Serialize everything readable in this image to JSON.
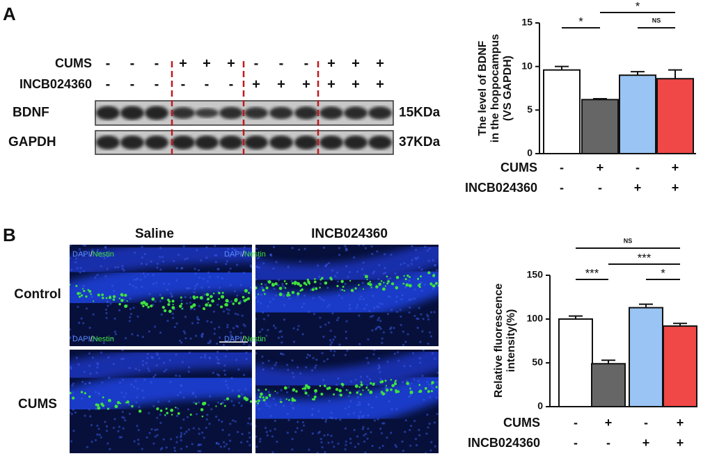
{
  "panel_labels": [
    "A",
    "B"
  ],
  "blot": {
    "treatments": [
      {
        "name": "CUMS",
        "signs": [
          "-",
          "-",
          "-",
          "+",
          "+",
          "+",
          "-",
          "-",
          "-",
          "+",
          "+",
          "+"
        ]
      },
      {
        "name": "INCB024360",
        "signs": [
          "-",
          "-",
          "-",
          "-",
          "-",
          "-",
          "+",
          "+",
          "+",
          "+",
          "+",
          "+"
        ]
      }
    ],
    "bands": [
      {
        "name": "BDNF",
        "size": "15KDa"
      },
      {
        "name": "GAPDH",
        "size": "37KDa"
      }
    ]
  },
  "microscopy": {
    "columns": [
      "Saline",
      "INCB024360"
    ],
    "rows": [
      "Control",
      "CUMS"
    ],
    "stain": {
      "dapi": "DAPI",
      "separator": "/",
      "nestin": "Nestin"
    }
  },
  "chart_data": [
    {
      "type": "bar",
      "y_label": [
        "The level of BDNF",
        "in the hoppocampus",
        "(VS GAPDH)"
      ],
      "values": [
        9.6,
        6.2,
        9.0,
        8.6
      ],
      "errors": [
        0.4,
        0.1,
        0.4,
        1.0
      ],
      "colors": [
        "#ffffff",
        "#666666",
        "#99c4f4",
        "#f04747"
      ],
      "ylim": [
        0,
        15
      ],
      "yticks": [
        0,
        5,
        10,
        15
      ],
      "conditions": [
        {
          "name": "CUMS",
          "signs": [
            "-",
            "+",
            "-",
            "+"
          ]
        },
        {
          "name": "INCB024360",
          "signs": [
            "-",
            "-",
            "+",
            "+"
          ]
        }
      ],
      "annotations": [
        {
          "text": "*",
          "between": [
            0,
            1
          ]
        },
        {
          "text": "*",
          "between": [
            1,
            3
          ]
        },
        {
          "text": "NS",
          "between": [
            2,
            3
          ]
        }
      ]
    },
    {
      "type": "bar",
      "y_label": [
        "Relative fluorescence",
        "intensity(%)"
      ],
      "values": [
        100,
        49,
        113,
        92
      ],
      "errors": [
        3.5,
        4,
        4,
        3
      ],
      "colors": [
        "#ffffff",
        "#666666",
        "#99c4f4",
        "#f04747"
      ],
      "ylim": [
        0,
        150
      ],
      "yticks": [
        0,
        50,
        100,
        150
      ],
      "conditions": [
        {
          "name": "CUMS",
          "signs": [
            "-",
            "+",
            "-",
            "+"
          ]
        },
        {
          "name": "INCB024360",
          "signs": [
            "-",
            "-",
            "+",
            "+"
          ]
        }
      ],
      "annotations": [
        {
          "text": "***",
          "between": [
            0,
            1
          ]
        },
        {
          "text": "*",
          "between": [
            2,
            3
          ]
        },
        {
          "text": "***",
          "between": [
            1,
            3
          ]
        },
        {
          "text": "NS",
          "between": [
            0,
            3
          ]
        }
      ]
    }
  ]
}
